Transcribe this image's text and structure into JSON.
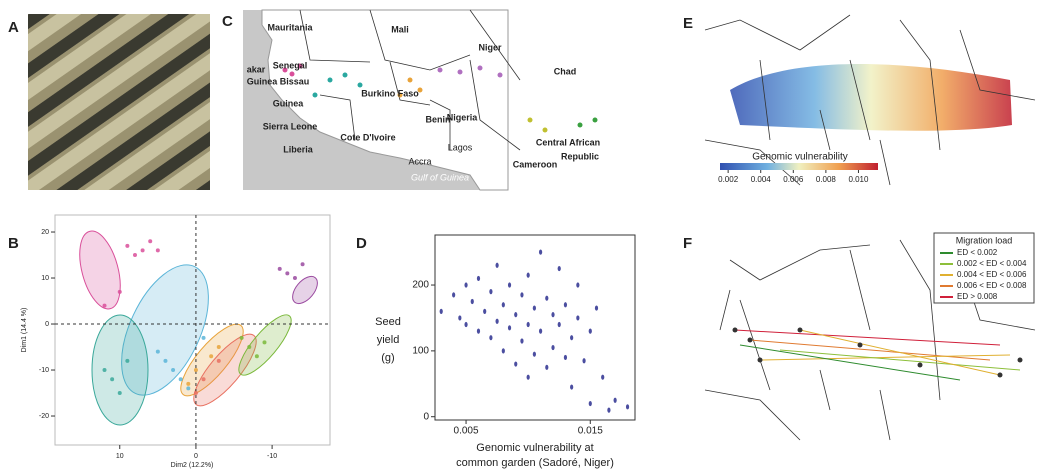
{
  "panels": {
    "A": {
      "label": "A"
    },
    "B": {
      "label": "B",
      "chart_data": {
        "type": "scatter",
        "x_label": "Dim2 (12.2%)",
        "y_label": "Dim1 (14.4 %)",
        "xlim": [
          18.5,
          -17.6
        ],
        "ylim": [
          -26.3,
          23.7
        ],
        "xticks": [
          10,
          0,
          -10
        ],
        "yticks": [
          20,
          10,
          0,
          -10,
          -20
        ],
        "series": [
          {
            "color": "#d94f9a",
            "x": [
              9,
              7,
              5,
              6,
              10,
              12,
              8
            ],
            "y": [
              17,
              16,
              16,
              18,
              7,
              4,
              15
            ]
          },
          {
            "color": "#5bb5d8",
            "x": [
              3,
              2,
              4,
              -1,
              1,
              5
            ],
            "y": [
              -10,
              -12,
              -8,
              -3,
              -14,
              -6
            ]
          },
          {
            "color": "#3aa89a",
            "x": [
              11,
              10,
              12,
              9
            ],
            "y": [
              -12,
              -15,
              -10,
              -8
            ]
          },
          {
            "color": "#e8a33a",
            "x": [
              0,
              -2,
              1,
              -3
            ],
            "y": [
              -10,
              -7,
              -13,
              -5
            ]
          },
          {
            "color": "#e87060",
            "x": [
              -1,
              -3,
              0
            ],
            "y": [
              -12,
              -8,
              -15
            ]
          },
          {
            "color": "#7ab83a",
            "x": [
              -7,
              -8,
              -6,
              -9
            ],
            "y": [
              -5,
              -7,
              -3,
              -4
            ]
          },
          {
            "color": "#9a4aa0",
            "x": [
              -12,
              -13,
              -11,
              -14
            ],
            "y": [
              11,
              10,
              12,
              13
            ]
          }
        ]
      }
    },
    "C": {
      "label": "C",
      "places": [
        "Mauritania",
        "Mali",
        "Niger",
        "Chad",
        "akar",
        "Senegal",
        "Guinea Bissau",
        "Guinea",
        "Sierra Leone",
        "Cote D'Ivoire",
        "Liberia",
        "Burkino Faso",
        "Benin",
        "Nigeria",
        "Lagos",
        "Accra",
        "Gulf of Guinea",
        "Cameroon",
        "Central African",
        "Republic"
      ]
    },
    "D": {
      "label": "D",
      "chart_data": {
        "type": "scatter",
        "y_label": [
          "Seed",
          "yield",
          "(g)"
        ],
        "x_label": [
          "Genomic vulnerability at",
          "common garden (Sadoré, Niger)"
        ],
        "xlim": [
          0.0025,
          0.0186
        ],
        "ylim": [
          -5,
          276
        ],
        "xticks": [
          0.005,
          0.015
        ],
        "yticks": [
          0,
          100,
          200
        ],
        "series": [
          {
            "color": "#2b2f8f",
            "x": [
              0.003,
              0.004,
              0.0045,
              0.005,
              0.005,
              0.0055,
              0.006,
              0.006,
              0.0065,
              0.007,
              0.007,
              0.0075,
              0.0075,
              0.008,
              0.008,
              0.0085,
              0.0085,
              0.009,
              0.009,
              0.0095,
              0.0095,
              0.01,
              0.01,
              0.01,
              0.0105,
              0.0105,
              0.011,
              0.011,
              0.0115,
              0.0115,
              0.012,
              0.012,
              0.0125,
              0.0125,
              0.013,
              0.013,
              0.0135,
              0.0135,
              0.014,
              0.014,
              0.0145,
              0.015,
              0.015,
              0.0155,
              0.016,
              0.0165,
              0.017,
              0.018
            ],
            "y": [
              160,
              185,
              150,
              200,
              140,
              175,
              210,
              130,
              160,
              190,
              120,
              230,
              145,
              170,
              100,
              200,
              135,
              155,
              80,
              185,
              115,
              215,
              140,
              60,
              165,
              95,
              250,
              130,
              180,
              75,
              155,
              105,
              225,
              140,
              90,
              170,
              120,
              45,
              200,
              150,
              85,
              130,
              20,
              165,
              60,
              10,
              25,
              15
            ]
          }
        ]
      }
    },
    "E": {
      "label": "E",
      "colorbar": {
        "title": "Genomic vulnerability",
        "lim": [
          0.0015,
          0.0112
        ],
        "ticks": [
          0.002,
          0.004,
          0.006,
          0.008,
          {
            "value": 0.01,
            "label": "0.010"
          }
        ]
      }
    },
    "F": {
      "label": "F",
      "legend": {
        "title": "Migration load",
        "items": [
          {
            "name": "ED < 0.002",
            "color": "#2e8b2e"
          },
          {
            "name": "0.002 < ED < 0.004",
            "color": "#8dbf3a"
          },
          {
            "name": "0.004 < ED < 0.006",
            "color": "#e0b030"
          },
          {
            "name": "0.006 < ED < 0.008",
            "color": "#e07a30"
          },
          {
            "name": "ED > 0.008",
            "color": "#d0203a"
          }
        ]
      }
    }
  }
}
